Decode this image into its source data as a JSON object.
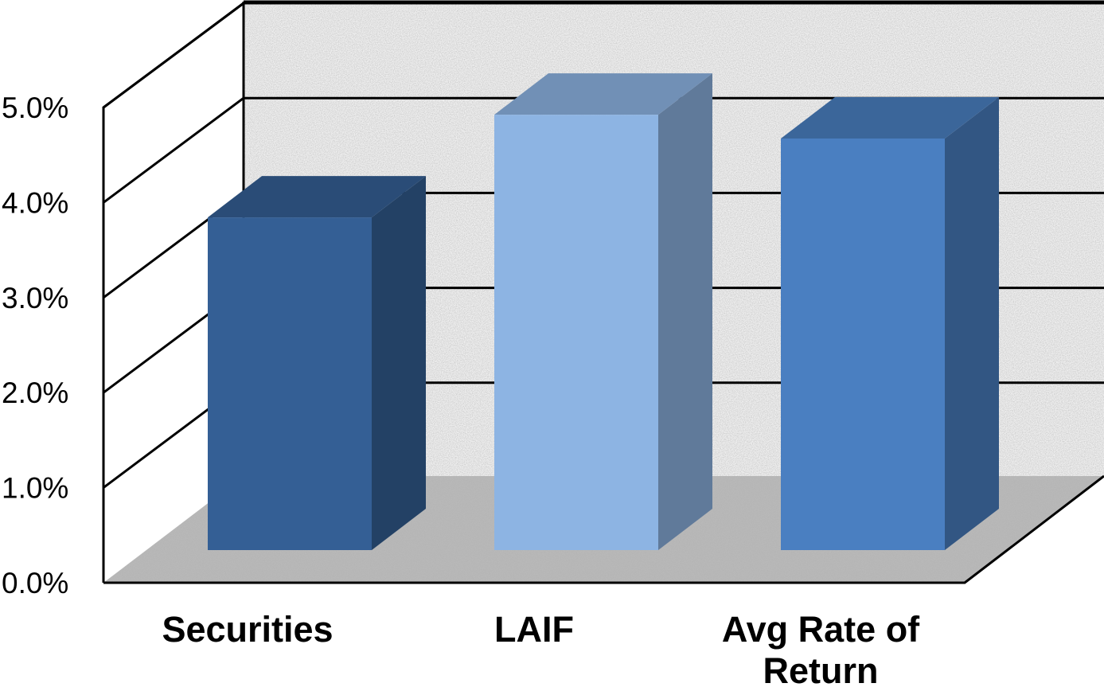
{
  "chart_data": {
    "type": "bar",
    "style": "3d-column",
    "categories": [
      [
        "Securities"
      ],
      [
        "LAIF"
      ],
      [
        "Avg Rate of",
        "Return"
      ]
    ],
    "values": [
      3.5,
      4.58,
      4.33
    ],
    "colors": [
      "#345f95",
      "#8db4e3",
      "#4a7fc1"
    ],
    "ylim": [
      0,
      5
    ],
    "y_ticks": [
      {
        "value": 0,
        "label": "0.0%"
      },
      {
        "value": 1,
        "label": "1.0%"
      },
      {
        "value": 2,
        "label": "2.0%"
      },
      {
        "value": 3,
        "label": "3.0%"
      },
      {
        "value": 4,
        "label": "4.0%"
      },
      {
        "value": 5,
        "label": "5.0%"
      }
    ],
    "grid": true,
    "legend": "none",
    "title": "",
    "xlabel": "",
    "ylabel": ""
  }
}
